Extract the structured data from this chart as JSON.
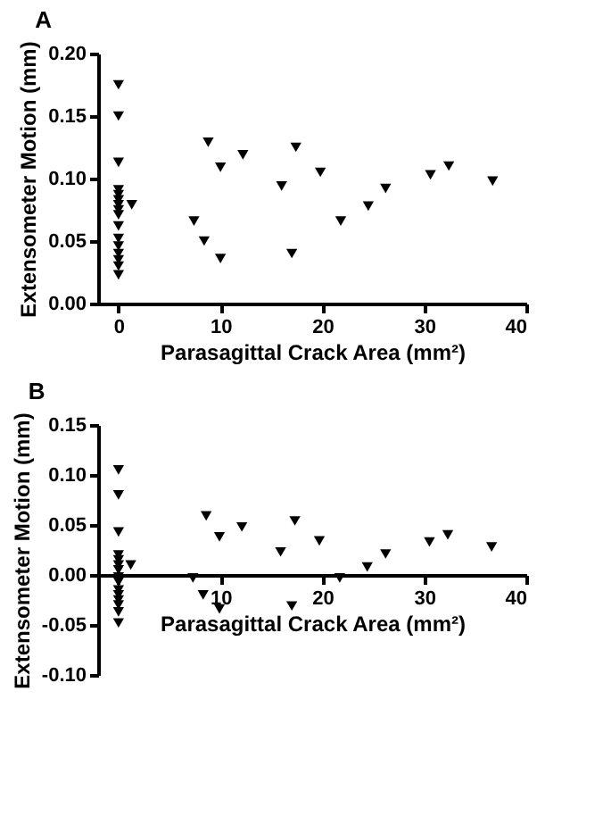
{
  "chart_data": [
    {
      "type": "scatter",
      "title": "A",
      "xlabel": "Parasagittal Crack Area (mm²)",
      "ylabel": "Extensometer Motion (mm)",
      "marker": "triangle-down",
      "grid": false,
      "xlim": [
        -2,
        40
      ],
      "xticks": [
        0,
        10,
        20,
        30,
        40
      ],
      "ylim": [
        0,
        0.2
      ],
      "yticks": [
        {
          "value": 0,
          "label": "0.00"
        },
        {
          "value": 0.05,
          "label": "0.05"
        },
        {
          "value": 0.1,
          "label": "0.10"
        },
        {
          "value": 0.15,
          "label": "0.15"
        },
        {
          "value": 0.2,
          "label": "0.20"
        }
      ],
      "series": [
        {
          "color": "#000000",
          "x": [
            0,
            0,
            0,
            0,
            0,
            0,
            0,
            0,
            0,
            0,
            0,
            0,
            0,
            0,
            0,
            0,
            1.3,
            7.4,
            8.4,
            8.8,
            10.0,
            10.0,
            12.2,
            16.0,
            17.0,
            17.4,
            19.8,
            21.8,
            24.5,
            26.2,
            30.6,
            32.4,
            36.7
          ],
          "values": [
            0.175,
            0.15,
            0.113,
            0.091,
            0.087,
            0.083,
            0.079,
            0.075,
            0.071,
            0.062,
            0.052,
            0.046,
            0.04,
            0.035,
            0.03,
            0.023,
            0.079,
            0.066,
            0.05,
            0.129,
            0.109,
            0.036,
            0.119,
            0.094,
            0.04,
            0.125,
            0.105,
            0.066,
            0.078,
            0.092,
            0.103,
            0.11,
            0.098
          ]
        }
      ]
    },
    {
      "type": "scatter",
      "title": "B",
      "xlabel": "Parasagittal Crack Area (mm²)",
      "ylabel": "Extensometer Motion (mm)",
      "marker": "triangle-down",
      "grid": false,
      "xlim": [
        -2,
        40
      ],
      "xticks": [
        {
          "value": 0,
          "label": null
        },
        10,
        20,
        30,
        40
      ],
      "ylim": [
        -0.1,
        0.15
      ],
      "yticks": [
        {
          "value": -0.1,
          "label": "-0.10"
        },
        {
          "value": -0.05,
          "label": "-0.05"
        },
        {
          "value": 0,
          "label": "0.00"
        },
        {
          "value": 0.05,
          "label": "0.05"
        },
        {
          "value": 0.1,
          "label": "0.10"
        },
        {
          "value": 0.15,
          "label": "0.15"
        }
      ],
      "series": [
        {
          "color": "#000000",
          "x": [
            0,
            0,
            0,
            0,
            0,
            0,
            0,
            0,
            0,
            0,
            0,
            0,
            0,
            0,
            0,
            1.2,
            7.3,
            8.3,
            8.6,
            9.9,
            9.9,
            12.1,
            15.9,
            17.0,
            17.3,
            19.7,
            21.7,
            24.4,
            26.2,
            30.5,
            32.3,
            36.6
          ],
          "values": [
            0.105,
            0.08,
            0.043,
            0.02,
            0.015,
            0.01,
            0.005,
            -0.002,
            -0.007,
            -0.015,
            -0.02,
            -0.025,
            -0.03,
            -0.037,
            -0.048,
            0.01,
            -0.003,
            -0.02,
            0.059,
            0.038,
            -0.034,
            0.048,
            0.023,
            -0.031,
            0.054,
            0.034,
            -0.003,
            0.008,
            0.021,
            0.033,
            0.04,
            0.028
          ]
        }
      ]
    }
  ]
}
